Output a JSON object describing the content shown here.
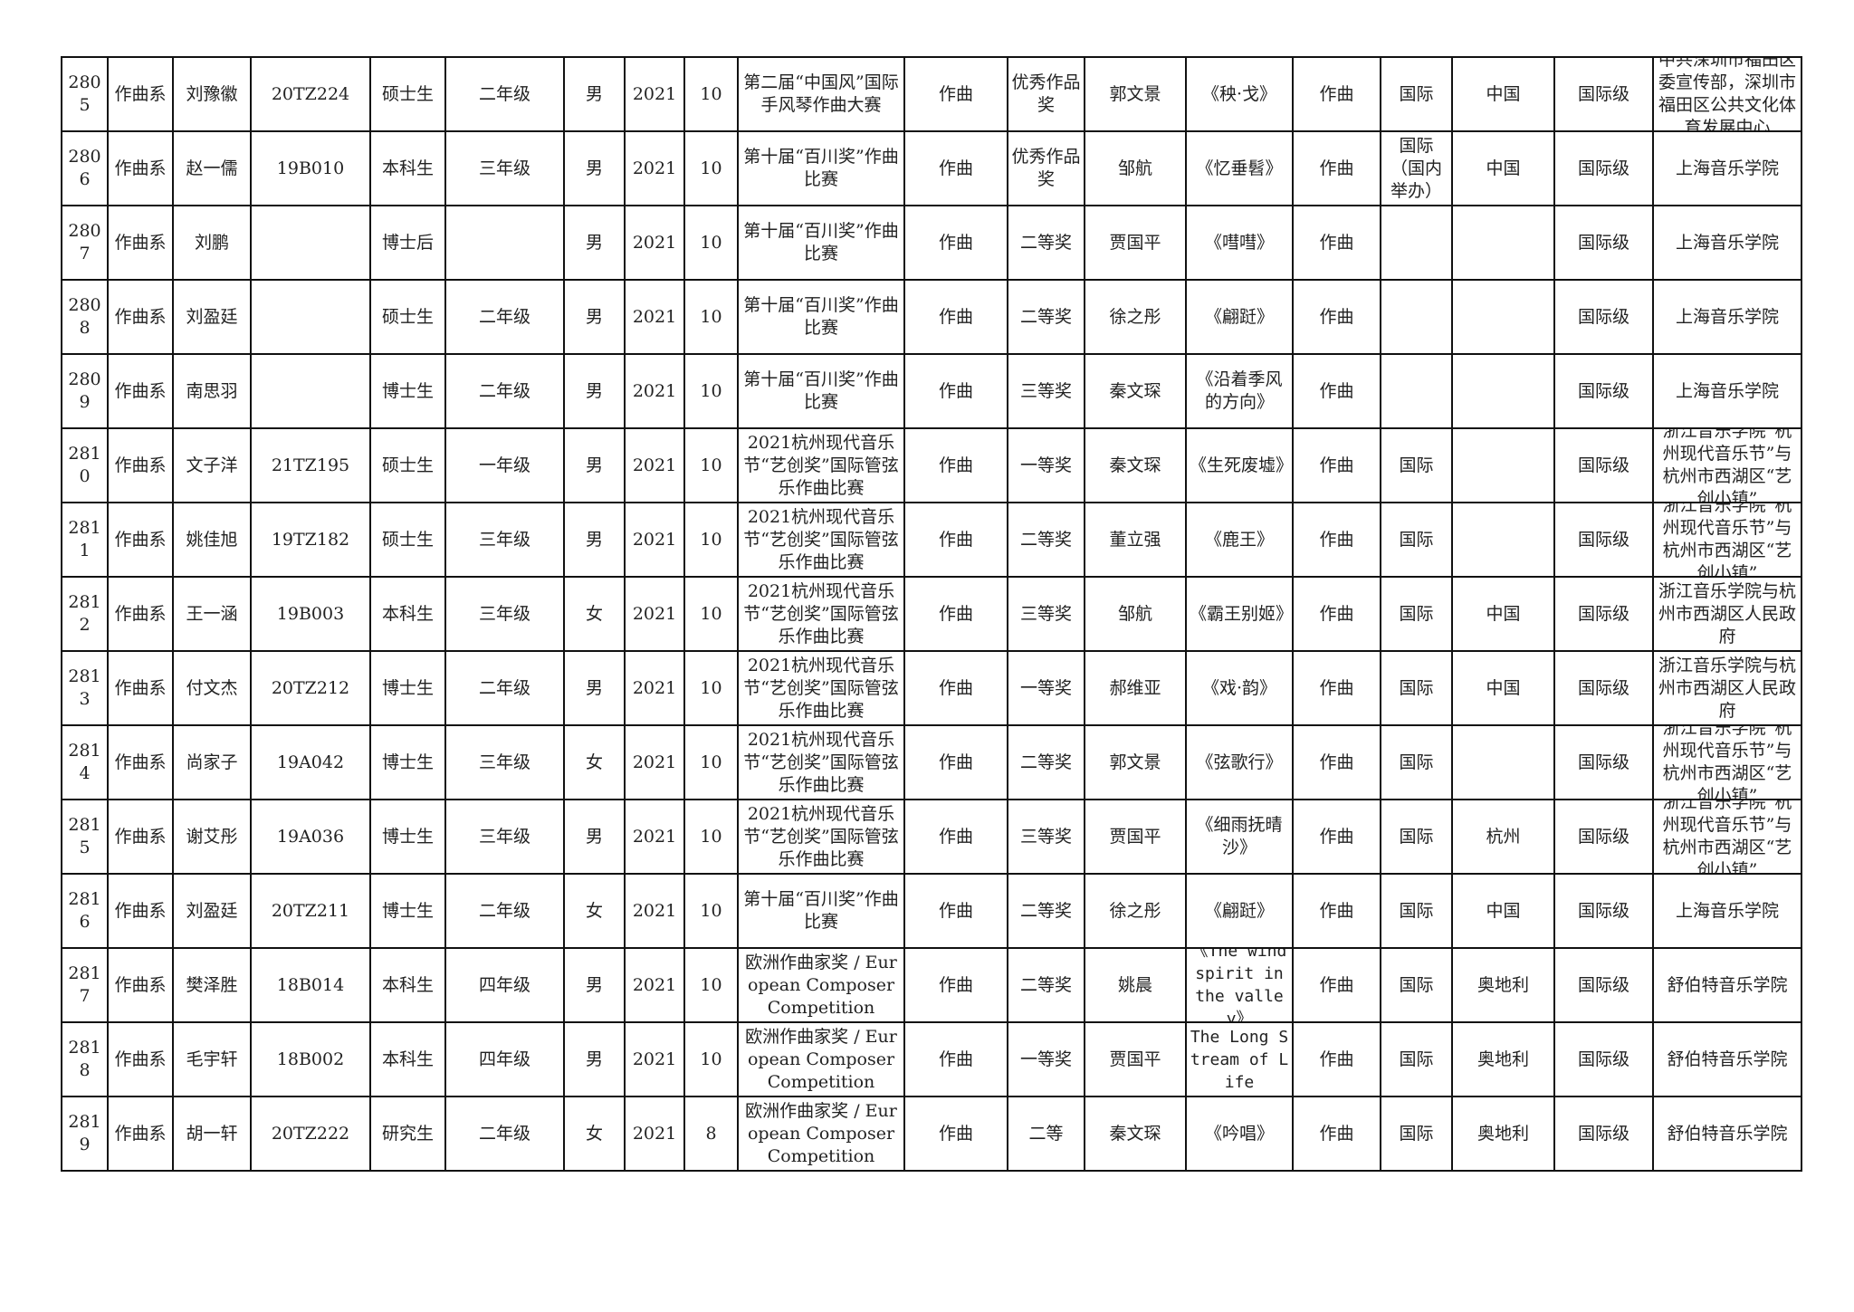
{
  "rows": [
    [
      "2805",
      "作曲系",
      "刘豫徽",
      "20TZ224",
      "硕士生",
      "二年级",
      "男",
      "2021",
      "10",
      "第二届“中国风”国际手风琴作曲大赛",
      "作曲",
      "优秀作品奖",
      "郭文景",
      "《秧·戈》",
      "作曲",
      "国际",
      "中国",
      "国际级",
      "中共深圳市福田区委宣传部，深圳市福田区公共文化体育发展中心"
    ],
    [
      "2806",
      "作曲系",
      "赵一儒",
      "19B010",
      "本科生",
      "三年级",
      "男",
      "2021",
      "10",
      "第十届“百川奖”作曲比赛",
      "作曲",
      "优秀作品奖",
      "邹航",
      "《忆垂髫》",
      "作曲",
      "国际（国内举办）",
      "中国",
      "国际级",
      "上海音乐学院"
    ],
    [
      "2807",
      "作曲系",
      "刘鹏",
      "",
      "博士后",
      "",
      "男",
      "2021",
      "10",
      "第十届“百川奖”作曲比赛",
      "作曲",
      "二等奖",
      "贾国平",
      "《嘒嘒》",
      "作曲",
      "",
      "",
      "国际级",
      "上海音乐学院"
    ],
    [
      "2808",
      "作曲系",
      "刘盈廷",
      "",
      "硕士生",
      "二年级",
      "男",
      "2021",
      "10",
      "第十届“百川奖”作曲比赛",
      "作曲",
      "二等奖",
      "徐之彤",
      "《翩跹》",
      "作曲",
      "",
      "",
      "国际级",
      "上海音乐学院"
    ],
    [
      "2809",
      "作曲系",
      "南思羽",
      "",
      "博士生",
      "二年级",
      "男",
      "2021",
      "10",
      "第十届“百川奖”作曲比赛",
      "作曲",
      "三等奖",
      "秦文琛",
      "《沿着季风的方向》",
      "作曲",
      "",
      "",
      "国际级",
      "上海音乐学院"
    ],
    [
      "2810",
      "作曲系",
      "文子洋",
      "21TZ195",
      "硕士生",
      "一年级",
      "男",
      "2021",
      "10",
      "2021杭州现代音乐节“艺创奖”国际管弦乐作曲比赛",
      "作曲",
      "一等奖",
      "秦文琛",
      "《生死废墟》",
      "作曲",
      "国际",
      "",
      "国际级",
      "浙江音乐学院“杭州现代音乐节”与杭州市西湖区“艺创小镇”"
    ],
    [
      "2811",
      "作曲系",
      "姚佳旭",
      "19TZ182",
      "硕士生",
      "三年级",
      "男",
      "2021",
      "10",
      "2021杭州现代音乐节“艺创奖”国际管弦乐作曲比赛",
      "作曲",
      "二等奖",
      "董立强",
      "《鹿王》",
      "作曲",
      "国际",
      "",
      "国际级",
      "浙江音乐学院“杭州现代音乐节”与杭州市西湖区“艺创小镇”"
    ],
    [
      "2812",
      "作曲系",
      "王一涵",
      "19B003",
      "本科生",
      "三年级",
      "女",
      "2021",
      "10",
      "2021杭州现代音乐节“艺创奖”国际管弦乐作曲比赛",
      "作曲",
      "三等奖",
      "邹航",
      "《霸王别姬》",
      "作曲",
      "国际",
      "中国",
      "国际级",
      "浙江音乐学院与杭州市西湖区人民政府"
    ],
    [
      "2813",
      "作曲系",
      "付文杰",
      "20TZ212",
      "博士生",
      "二年级",
      "男",
      "2021",
      "10",
      "2021杭州现代音乐节“艺创奖”国际管弦乐作曲比赛",
      "作曲",
      "一等奖",
      "郝维亚",
      "《戏·韵》",
      "作曲",
      "国际",
      "中国",
      "国际级",
      "浙江音乐学院与杭州市西湖区人民政府"
    ],
    [
      "2814",
      "作曲系",
      "尚家子",
      "19A042",
      "博士生",
      "三年级",
      "女",
      "2021",
      "10",
      "2021杭州现代音乐节“艺创奖”国际管弦乐作曲比赛",
      "作曲",
      "二等奖",
      "郭文景",
      "《弦歌行》",
      "作曲",
      "国际",
      "",
      "国际级",
      "浙江音乐学院“杭州现代音乐节”与杭州市西湖区“艺创小镇”"
    ],
    [
      "2815",
      "作曲系",
      "谢艾彤",
      "19A036",
      "博士生",
      "三年级",
      "男",
      "2021",
      "10",
      "2021杭州现代音乐节“艺创奖”国际管弦乐作曲比赛",
      "作曲",
      "三等奖",
      "贾国平",
      "《细雨抚晴沙》",
      "作曲",
      "国际",
      "杭州",
      "国际级",
      "浙江音乐学院“杭州现代音乐节”与杭州市西湖区“艺创小镇”"
    ],
    [
      "2816",
      "作曲系",
      "刘盈廷",
      "20TZ211",
      "博士生",
      "二年级",
      "女",
      "2021",
      "10",
      "第十届“百川奖”作曲比赛",
      "作曲",
      "二等奖",
      "徐之彤",
      "《翩跹》",
      "作曲",
      "国际",
      "中国",
      "国际级",
      "上海音乐学院"
    ],
    [
      "2817",
      "作曲系",
      "樊泽胜",
      "18B014",
      "本科生",
      "四年级",
      "男",
      "2021",
      "10",
      "欧洲作曲家奖 / European Composer Competition",
      "作曲",
      "二等奖",
      "姚晨",
      "《The wind spirit in the valley》",
      "作曲",
      "国际",
      "奥地利",
      "国际级",
      "舒伯特音乐学院"
    ],
    [
      "2818",
      "作曲系",
      "毛宇轩",
      "18B002",
      "本科生",
      "四年级",
      "男",
      "2021",
      "10",
      "欧洲作曲家奖 / European Composer Competition",
      "作曲",
      "一等奖",
      "贾国平",
      "The Long Stream of Life",
      "作曲",
      "国际",
      "奥地利",
      "国际级",
      "舒伯特音乐学院"
    ],
    [
      "2819",
      "作曲系",
      "胡一轩",
      "20TZ222",
      "研究生",
      "二年级",
      "女",
      "2021",
      "8",
      "欧洲作曲家奖 / European Composer Competition",
      "作曲",
      "二等",
      "秦文琛",
      "《吟唱》",
      "作曲",
      "国际",
      "奥地利",
      "国际级",
      "舒伯特音乐学院"
    ]
  ]
}
